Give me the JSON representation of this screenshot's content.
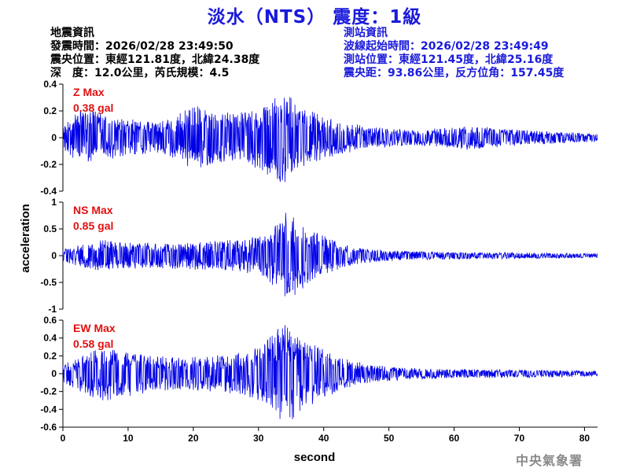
{
  "header": {
    "title": "淡水（NTS） 震度：1級",
    "quake_info": [
      "地震資訊",
      "發震時間：2026/02/28 23:49:50",
      "震央位置：東經121.81度，北緯24.38度",
      "深　度：12.0公里，芮氏規模：4.5"
    ],
    "station_info": [
      "測站資訊",
      "波線起始時間：2026/02/28 23:49:49",
      "測站位置：東經121.45度，北緯25.16度",
      "震央距：93.86公里，反方位角：157.45度"
    ]
  },
  "footer": {
    "agency": "中央氣象署"
  },
  "colors": {
    "trace": "#0000e6",
    "title": "#1a1adb",
    "max_label": "#e01010",
    "watermark": "#8a8a8a"
  },
  "chart_data": [
    {
      "type": "line",
      "component": "Z",
      "max_label": "Z Max",
      "max_value": "0.38 gal",
      "x_range": [
        0,
        82
      ],
      "ylim": [
        -0.4,
        0.4
      ],
      "y_ticks": [
        "0.4",
        "0.2",
        "0",
        "-0.2",
        "-0.4"
      ],
      "envelope": [
        [
          0,
          0.08
        ],
        [
          2,
          0.18
        ],
        [
          4,
          0.22
        ],
        [
          7,
          0.16
        ],
        [
          10,
          0.14
        ],
        [
          14,
          0.12
        ],
        [
          17,
          0.15
        ],
        [
          19,
          0.22
        ],
        [
          21,
          0.24
        ],
        [
          24,
          0.2
        ],
        [
          26,
          0.18
        ],
        [
          28,
          0.2
        ],
        [
          30,
          0.24
        ],
        [
          32,
          0.3
        ],
        [
          33.5,
          0.36
        ],
        [
          35,
          0.3
        ],
        [
          37,
          0.22
        ],
        [
          40,
          0.16
        ],
        [
          43,
          0.12
        ],
        [
          46,
          0.09
        ],
        [
          50,
          0.07
        ],
        [
          54,
          0.06
        ],
        [
          58,
          0.07
        ],
        [
          62,
          0.09
        ],
        [
          65,
          0.08
        ],
        [
          70,
          0.06
        ],
        [
          74,
          0.05
        ],
        [
          78,
          0.04
        ],
        [
          82,
          0.03
        ]
      ]
    },
    {
      "type": "line",
      "component": "NS",
      "max_label": "NS Max",
      "max_value": "0.85 gal",
      "x_range": [
        0,
        82
      ],
      "ylim": [
        -1,
        1
      ],
      "y_ticks": [
        "1",
        "0.5",
        "0",
        "-0.5",
        "-1"
      ],
      "envelope": [
        [
          0,
          0.12
        ],
        [
          3,
          0.22
        ],
        [
          6,
          0.3
        ],
        [
          10,
          0.25
        ],
        [
          15,
          0.24
        ],
        [
          20,
          0.26
        ],
        [
          24,
          0.3
        ],
        [
          28,
          0.32
        ],
        [
          31,
          0.42
        ],
        [
          33,
          0.68
        ],
        [
          34.5,
          0.84
        ],
        [
          36,
          0.7
        ],
        [
          38,
          0.5
        ],
        [
          40,
          0.38
        ],
        [
          43,
          0.22
        ],
        [
          46,
          0.14
        ],
        [
          50,
          0.1
        ],
        [
          55,
          0.08
        ],
        [
          60,
          0.07
        ],
        [
          65,
          0.06
        ],
        [
          70,
          0.06
        ],
        [
          75,
          0.05
        ],
        [
          82,
          0.04
        ]
      ]
    },
    {
      "type": "line",
      "component": "EW",
      "max_label": "EW Max",
      "max_value": "0.58 gal",
      "x_range": [
        0,
        82
      ],
      "ylim": [
        -0.6,
        0.6
      ],
      "y_ticks": [
        "0.6",
        "0.4",
        "0.2",
        "0",
        "-0.2",
        "-0.4",
        "-0.6"
      ],
      "envelope": [
        [
          0,
          0.1
        ],
        [
          2,
          0.18
        ],
        [
          4,
          0.25
        ],
        [
          6,
          0.32
        ],
        [
          8,
          0.28
        ],
        [
          11,
          0.24
        ],
        [
          15,
          0.2
        ],
        [
          19,
          0.18
        ],
        [
          22,
          0.2
        ],
        [
          26,
          0.22
        ],
        [
          29,
          0.28
        ],
        [
          31,
          0.36
        ],
        [
          33,
          0.52
        ],
        [
          34.5,
          0.56
        ],
        [
          36,
          0.46
        ],
        [
          38,
          0.36
        ],
        [
          40,
          0.28
        ],
        [
          43,
          0.18
        ],
        [
          46,
          0.12
        ],
        [
          50,
          0.08
        ],
        [
          55,
          0.06
        ],
        [
          60,
          0.05
        ],
        [
          65,
          0.05
        ],
        [
          70,
          0.045
        ],
        [
          75,
          0.04
        ],
        [
          82,
          0.03
        ]
      ]
    }
  ],
  "x_axis": {
    "label": "second",
    "ticks": [
      "0",
      "10",
      "20",
      "30",
      "40",
      "50",
      "60",
      "70",
      "80"
    ]
  },
  "y_axis": {
    "label": "acceleration"
  }
}
